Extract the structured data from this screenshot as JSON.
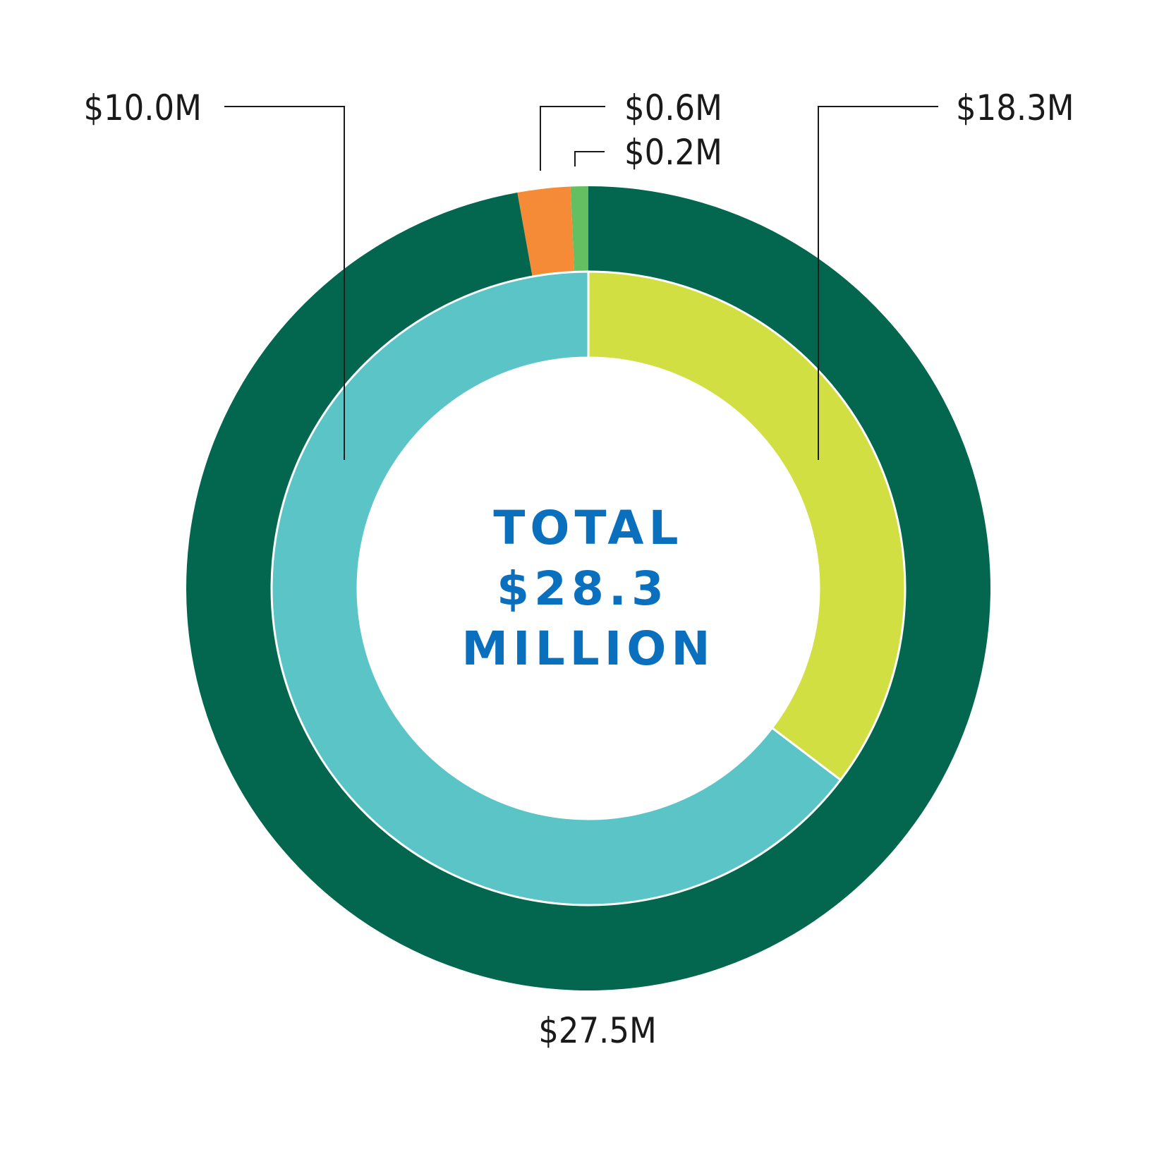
{
  "chart_data": {
    "type": "pie",
    "style": "nested-donut",
    "center_title": {
      "lines": [
        "TOTAL",
        "$28.3",
        "MILLION"
      ],
      "color": "#0a6fbd"
    },
    "rings": [
      {
        "name": "outer",
        "values": [
          0.2,
          0.6,
          27.5
        ],
        "labels": [
          "$0.2M",
          "$0.6M",
          "$27.5M"
        ],
        "colors": [
          "#63bf62",
          "#f58b36",
          "#02674e"
        ]
      },
      {
        "name": "inner",
        "values": [
          18.3,
          10.0
        ],
        "labels": [
          "$18.3M",
          "$10.0M"
        ],
        "colors": [
          "#5bc4c7",
          "#d2df43"
        ]
      }
    ]
  }
}
